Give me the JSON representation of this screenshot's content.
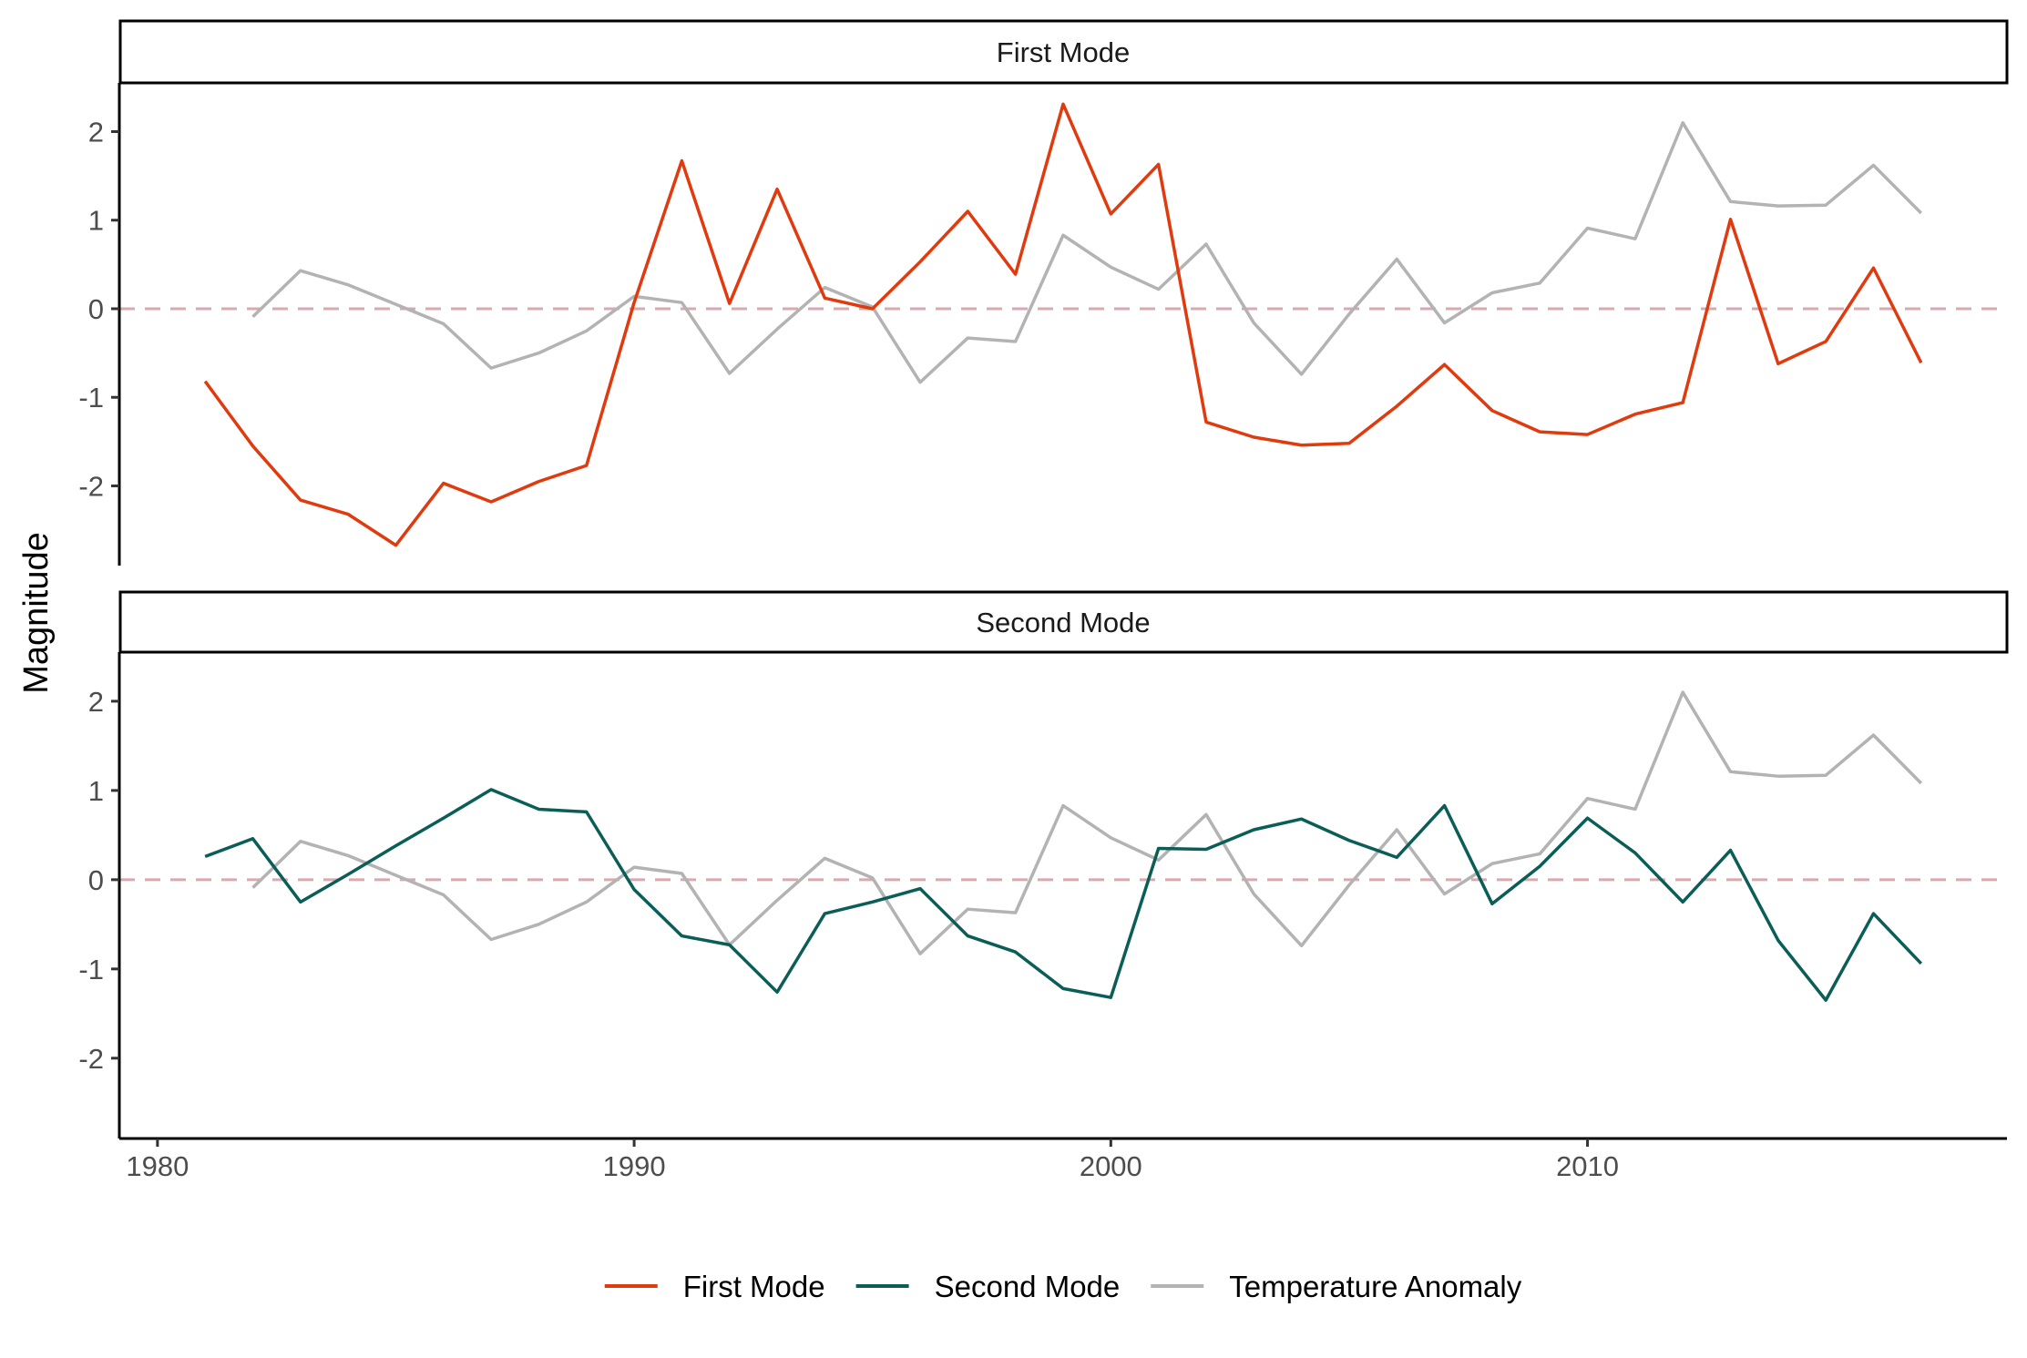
{
  "chart_data": {
    "type": "line",
    "ylabel": "Magnitude",
    "xlabel": "",
    "xlim": [
      1979.2,
      2018.8
    ],
    "ylim": [
      -2.9,
      2.55
    ],
    "x_ticks": [
      1980,
      1990,
      2000,
      2010
    ],
    "y_ticks": [
      -2,
      -1,
      0,
      1,
      2
    ],
    "reference_line": 0,
    "reference_line_color": "#d9a9ad",
    "legend_position": "bottom",
    "colors": {
      "First Mode": "#e03a0e",
      "Second Mode": "#0b5e57",
      "Temperature Anomaly": "#b3b3b3"
    },
    "legend": [
      "First Mode",
      "Second Mode",
      "Temperature Anomaly"
    ],
    "temperature_anomaly": {
      "name": "Temperature Anomaly",
      "x": [
        1982,
        1983,
        1984,
        1985,
        1986,
        1987,
        1988,
        1989,
        1990,
        1991,
        1992,
        1993,
        1994,
        1995,
        1996,
        1997,
        1998,
        1999,
        2000,
        2001,
        2002,
        2003,
        2004,
        2005,
        2006,
        2007,
        2008,
        2009,
        2010,
        2011,
        2012,
        2013,
        2014,
        2015,
        2016,
        2017
      ],
      "y": [
        -0.09,
        0.43,
        0.27,
        0.05,
        -0.17,
        -0.67,
        -0.5,
        -0.25,
        0.14,
        0.07,
        -0.73,
        -0.23,
        0.24,
        0.02,
        -0.83,
        -0.33,
        -0.37,
        0.83,
        0.47,
        0.22,
        0.73,
        -0.16,
        -0.74,
        -0.06,
        0.56,
        -0.16,
        0.18,
        0.29,
        0.91,
        0.79,
        2.1,
        1.21,
        1.16,
        1.17,
        1.62,
        1.08
      ]
    },
    "panels": [
      {
        "strip": "First Mode",
        "series": {
          "name": "First Mode",
          "x": [
            1981,
            1982,
            1983,
            1984,
            1985,
            1986,
            1987,
            1988,
            1989,
            1990,
            1991,
            1992,
            1993,
            1994,
            1995,
            1996,
            1997,
            1998,
            1999,
            2000,
            2001,
            2002,
            2003,
            2004,
            2005,
            2006,
            2007,
            2008,
            2009,
            2010,
            2011,
            2012,
            2013,
            2014,
            2015,
            2016,
            2017
          ],
          "y": [
            -0.82,
            -1.55,
            -2.16,
            -2.32,
            -2.67,
            -1.97,
            -2.18,
            -1.95,
            -1.77,
            0.07,
            1.67,
            0.06,
            1.35,
            0.12,
            0.0,
            0.53,
            1.1,
            0.39,
            2.31,
            1.07,
            1.63,
            -1.28,
            -1.45,
            -1.54,
            -1.52,
            -1.1,
            -0.63,
            -1.15,
            -1.39,
            -1.42,
            -1.19,
            -1.06,
            1.01,
            -0.62,
            -0.37,
            0.46,
            -0.61
          ]
        }
      },
      {
        "strip": "Second Mode",
        "series": {
          "name": "Second Mode",
          "x": [
            1981,
            1982,
            1983,
            1984,
            1985,
            1986,
            1987,
            1988,
            1989,
            1990,
            1991,
            1992,
            1993,
            1994,
            1995,
            1996,
            1997,
            1998,
            1999,
            2000,
            2001,
            2002,
            2003,
            2004,
            2005,
            2006,
            2007,
            2008,
            2009,
            2010,
            2011,
            2012,
            2013,
            2014,
            2015,
            2016,
            2017
          ],
          "y": [
            0.26,
            0.46,
            -0.25,
            0.06,
            0.38,
            0.69,
            1.01,
            0.79,
            0.76,
            -0.11,
            -0.63,
            -0.73,
            -1.26,
            -0.38,
            -0.25,
            -0.1,
            -0.63,
            -0.81,
            -1.22,
            -1.32,
            0.35,
            0.34,
            0.56,
            0.68,
            0.44,
            0.25,
            0.83,
            -0.27,
            0.15,
            0.69,
            0.3,
            -0.25,
            0.33,
            -0.68,
            -1.35,
            -0.38,
            -0.94
          ]
        }
      }
    ]
  }
}
